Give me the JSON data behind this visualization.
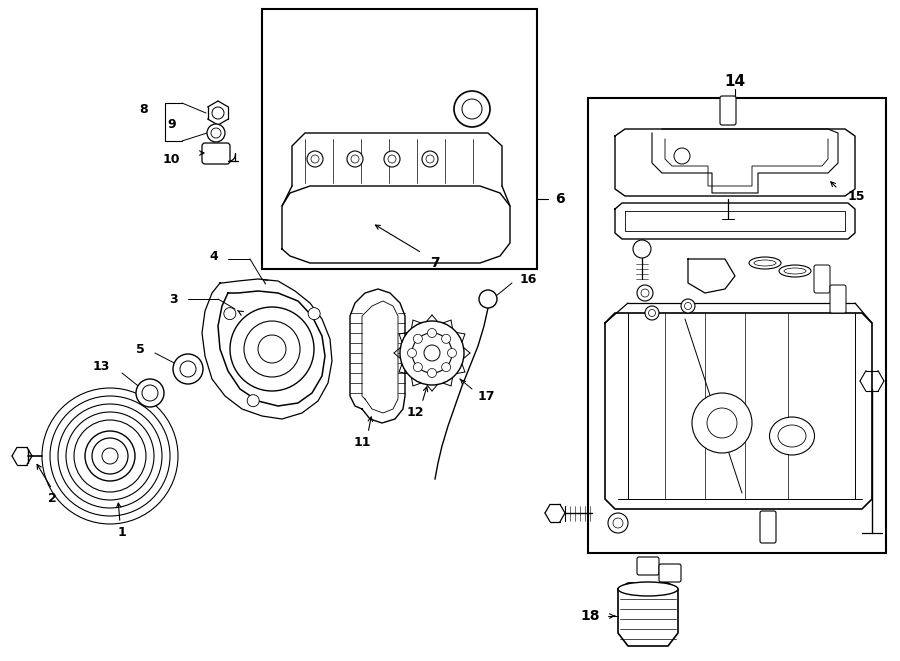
{
  "bg_color": "#ffffff",
  "line_color": "#000000",
  "fig_width": 9.0,
  "fig_height": 6.61,
  "dpi": 100,
  "lw": 1.0
}
